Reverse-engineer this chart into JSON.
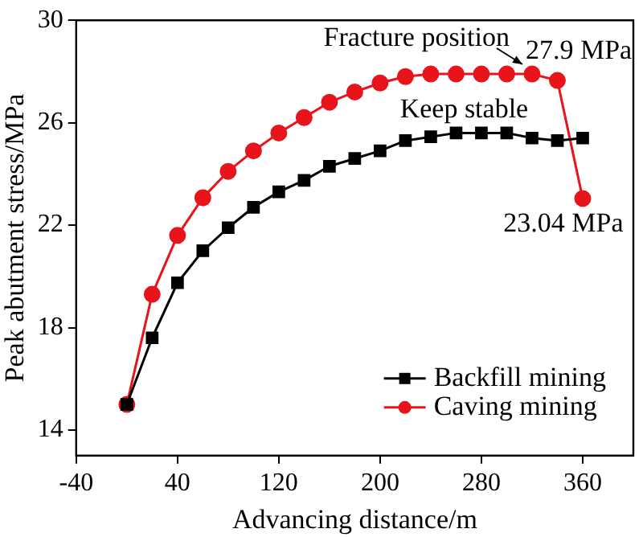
{
  "chart_data": {
    "type": "line",
    "xlabel": "Advancing distance/m",
    "ylabel": "Peak abutment stress/MPa",
    "x": [
      0,
      20,
      40,
      60,
      80,
      100,
      120,
      140,
      160,
      180,
      200,
      220,
      240,
      260,
      280,
      300,
      320,
      340,
      360
    ],
    "series": [
      {
        "name": "Backfill mining",
        "color": "#000000",
        "marker": "square",
        "values": [
          15.0,
          17.6,
          19.75,
          21.0,
          21.9,
          22.7,
          23.3,
          23.75,
          24.3,
          24.6,
          24.9,
          25.3,
          25.45,
          25.6,
          25.6,
          25.6,
          25.4,
          25.3,
          25.4
        ]
      },
      {
        "name": "Caving mining",
        "color": "#e8141c",
        "marker": "circle",
        "values": [
          15.0,
          19.3,
          21.6,
          23.07,
          24.1,
          24.9,
          25.6,
          26.2,
          26.8,
          27.2,
          27.55,
          27.8,
          27.9,
          27.9,
          27.9,
          27.9,
          27.9,
          27.65,
          23.04
        ]
      }
    ],
    "xlim": [
      -40,
      400
    ],
    "xticks": [
      -40,
      40,
      120,
      200,
      280,
      360
    ],
    "ylim": [
      13,
      30
    ],
    "yticks": [
      14,
      18,
      22,
      26,
      30
    ],
    "grid": false,
    "legend": "bottom right",
    "annotations": [
      {
        "text": "Fracture position",
        "x": 320,
        "y": 27.9
      },
      {
        "text": "27.9 MPa",
        "x": 320,
        "y": 27.9
      },
      {
        "text": "Keep stable",
        "x": 260,
        "y": 25.6
      },
      {
        "text": "23.04 MPa",
        "x": 360,
        "y": 23.04
      }
    ]
  }
}
